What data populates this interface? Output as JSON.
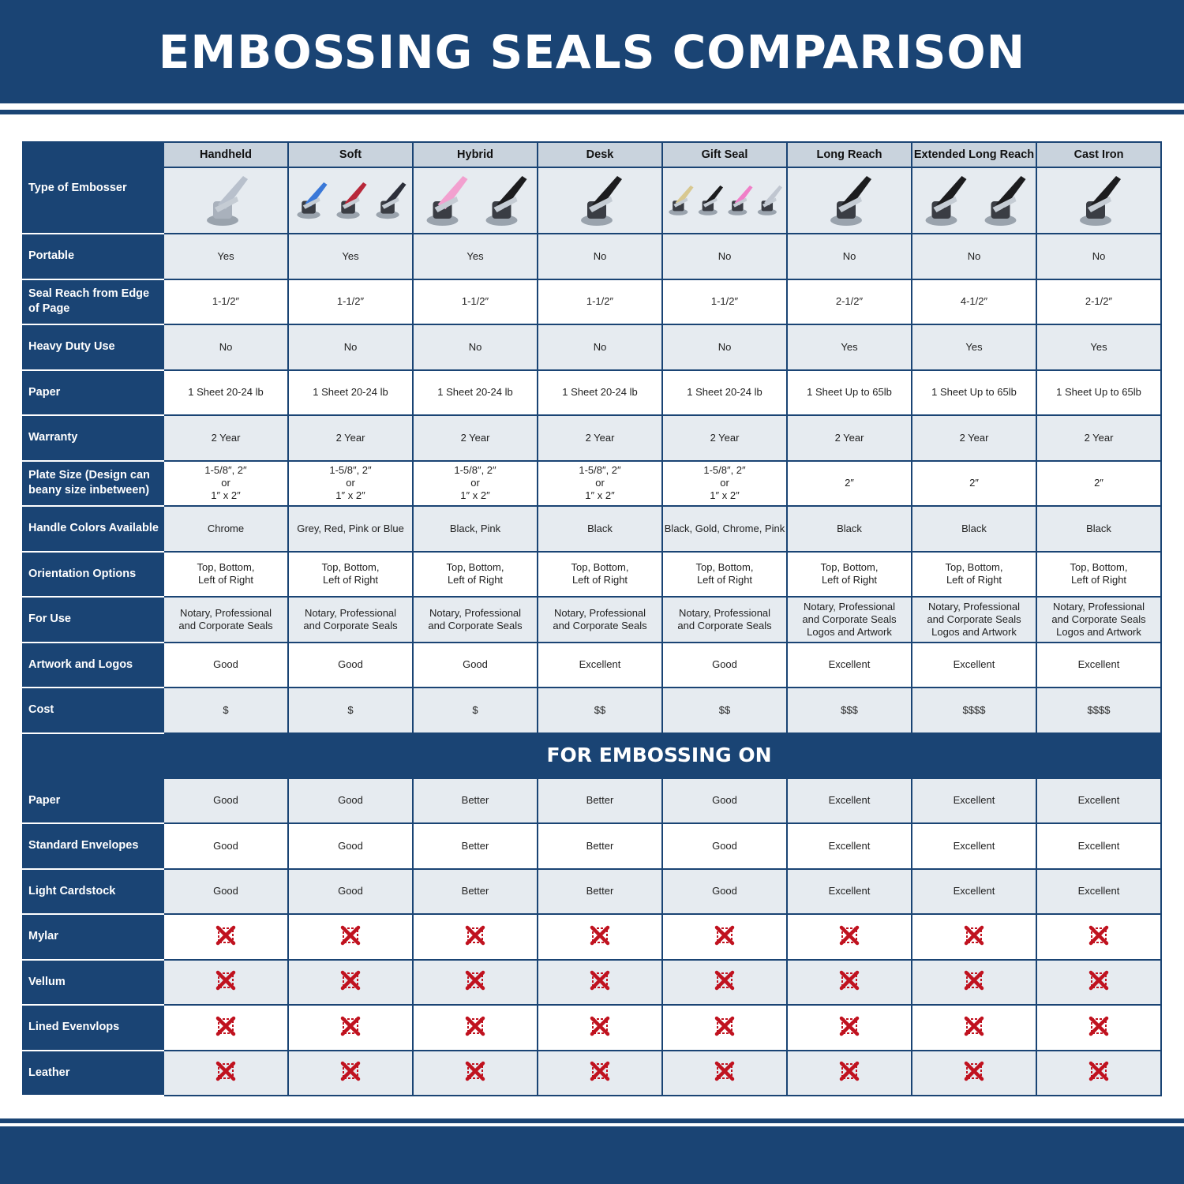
{
  "title": "EMBOSSING SEALS COMPARISON",
  "colors": {
    "navy": "#1a4474",
    "header_gray": "#c9d3dd",
    "row_gray": "#e6ebf0",
    "x_red": "#c0121f"
  },
  "type_label": "Type of Embosser",
  "columns": [
    {
      "name": "Handheld",
      "image_colors": [
        "#b8c0cc"
      ]
    },
    {
      "name": "Soft",
      "image_colors": [
        "#3a78d8",
        "#b8283a",
        "#2c2f3a"
      ]
    },
    {
      "name": "Hybrid",
      "image_colors": [
        "#f2a0cf",
        "#1c1c1e"
      ]
    },
    {
      "name": "Desk",
      "image_colors": [
        "#1c1c1e"
      ]
    },
    {
      "name": "Gift Seal",
      "image_colors": [
        "#d8c890",
        "#1c1c1e",
        "#f07fc8",
        "#c0c6d0"
      ]
    },
    {
      "name": "Long Reach",
      "image_colors": [
        "#1c1c1e"
      ]
    },
    {
      "name": "Extended Long Reach",
      "image_colors": [
        "#1c1c1e",
        "#1c1c1e"
      ]
    },
    {
      "name": "Cast Iron",
      "image_colors": [
        "#1c1c1e"
      ]
    }
  ],
  "rows": [
    {
      "label": "Portable",
      "values": [
        "Yes",
        "Yes",
        "Yes",
        "No",
        "No",
        "No",
        "No",
        "No"
      ]
    },
    {
      "label": "Seal Reach from Edge of Page",
      "values": [
        "1-1/2″",
        "1-1/2″",
        "1-1/2″",
        "1-1/2″",
        "1-1/2″",
        "2-1/2″",
        "4-1/2″",
        "2-1/2″"
      ]
    },
    {
      "label": "Heavy Duty Use",
      "values": [
        "No",
        "No",
        "No",
        "No",
        "No",
        "Yes",
        "Yes",
        "Yes"
      ]
    },
    {
      "label": "Paper",
      "values": [
        "1 Sheet 20-24 lb",
        "1 Sheet 20-24 lb",
        "1 Sheet 20-24 lb",
        "1 Sheet 20-24 lb",
        "1 Sheet 20-24 lb",
        "1 Sheet Up to 65lb",
        "1 Sheet Up to 65lb",
        "1 Sheet Up to 65lb"
      ]
    },
    {
      "label": "Warranty",
      "values": [
        "2 Year",
        "2 Year",
        "2 Year",
        "2 Year",
        "2 Year",
        "2 Year",
        "2 Year",
        "2 Year"
      ]
    },
    {
      "label": "Plate Size (Design can beany size inbetween)",
      "values": [
        "1-5/8″, 2″\nor\n1″ x 2″",
        "1-5/8″, 2″\nor\n1″ x 2″",
        "1-5/8″, 2″\nor\n1″ x 2″",
        "1-5/8″, 2″\nor\n1″ x 2″",
        "1-5/8″, 2″\nor\n1″ x 2″",
        "2″",
        "2″",
        "2″"
      ]
    },
    {
      "label": "Handle Colors Available",
      "values": [
        "Chrome",
        "Grey, Red, Pink or Blue",
        "Black, Pink",
        "Black",
        "Black, Gold, Chrome, Pink",
        "Black",
        "Black",
        "Black"
      ]
    },
    {
      "label": "Orientation Options",
      "values": [
        "Top, Bottom,\nLeft of Right",
        "Top, Bottom,\nLeft of Right",
        "Top, Bottom,\nLeft of Right",
        "Top, Bottom,\nLeft of Right",
        "Top, Bottom,\nLeft of Right",
        "Top, Bottom,\nLeft of Right",
        "Top, Bottom,\nLeft of Right",
        "Top, Bottom,\nLeft of Right"
      ]
    },
    {
      "label": "For Use",
      "values": [
        "Notary, Professional\nand Corporate Seals",
        "Notary, Professional\nand Corporate Seals",
        "Notary, Professional\nand Corporate Seals",
        "Notary, Professional\nand Corporate Seals",
        "Notary, Professional\nand Corporate Seals",
        "Notary, Professional\nand Corporate Seals\nLogos and Artwork",
        "Notary, Professional\nand Corporate Seals\nLogos and Artwork",
        "Notary, Professional\nand Corporate Seals\nLogos and Artwork"
      ]
    },
    {
      "label": "Artwork and Logos",
      "values": [
        "Good",
        "Good",
        "Good",
        "Excellent",
        "Good",
        "Excellent",
        "Excellent",
        "Excellent"
      ]
    },
    {
      "label": "Cost",
      "values": [
        "$",
        "$",
        "$",
        "$$",
        "$$",
        "$$$",
        "$$$$",
        "$$$$"
      ]
    }
  ],
  "section_title": "FOR EMBOSSING ON",
  "embossing_rows": [
    {
      "label": "Paper",
      "values": [
        "Good",
        "Good",
        "Better",
        "Better",
        "Good",
        "Excellent",
        "Excellent",
        "Excellent"
      ]
    },
    {
      "label": "Standard Envelopes",
      "values": [
        "Good",
        "Good",
        "Better",
        "Better",
        "Good",
        "Excellent",
        "Excellent",
        "Excellent"
      ]
    },
    {
      "label": "Light Cardstock",
      "values": [
        "Good",
        "Good",
        "Better",
        "Better",
        "Good",
        "Excellent",
        "Excellent",
        "Excellent"
      ]
    },
    {
      "label": "Mylar",
      "values": [
        "x-icon",
        "x-icon",
        "x-icon",
        "x-icon",
        "x-icon",
        "x-icon",
        "x-icon",
        "x-icon"
      ]
    },
    {
      "label": "Vellum",
      "values": [
        "x-icon",
        "x-icon",
        "x-icon",
        "x-icon",
        "x-icon",
        "x-icon",
        "x-icon",
        "x-icon"
      ]
    },
    {
      "label": "Lined Evenvlops",
      "values": [
        "x-icon",
        "x-icon",
        "x-icon",
        "x-icon",
        "x-icon",
        "x-icon",
        "x-icon",
        "x-icon"
      ]
    },
    {
      "label": "Leather",
      "values": [
        "x-icon",
        "x-icon",
        "x-icon",
        "x-icon",
        "x-icon",
        "x-icon",
        "x-icon",
        "x-icon"
      ]
    }
  ]
}
